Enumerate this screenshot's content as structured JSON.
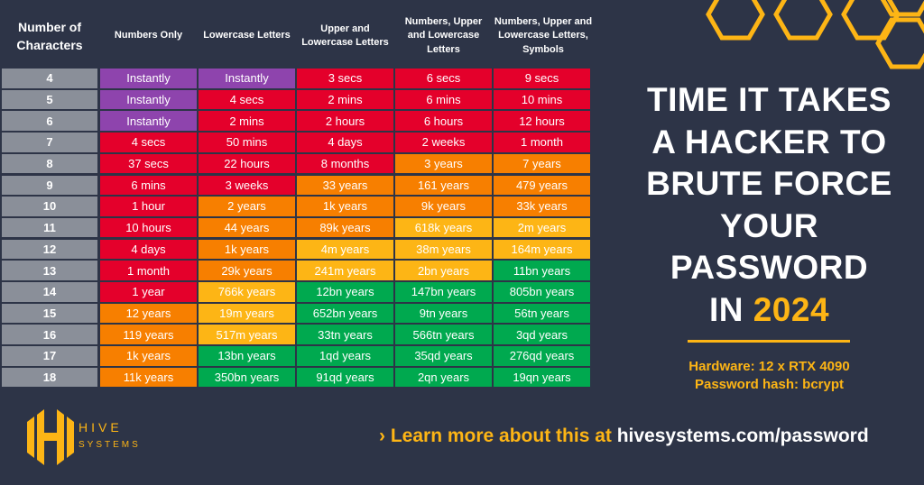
{
  "colors": {
    "background": "#2d3447",
    "row_header": "#8a8f99",
    "P": "#8e44ad",
    "R": "#e4002b",
    "O": "#f77f00",
    "Y": "#fdb515",
    "G": "#00a94f",
    "accent": "#fdb515"
  },
  "chart_data": {
    "type": "table",
    "columns": [
      "Number of Characters",
      "Numbers Only",
      "Lowercase Letters",
      "Upper and Lowercase Letters",
      "Numbers, Upper and Lowercase Letters",
      "Numbers, Upper and Lowercase Letters, Symbols"
    ],
    "rows": [
      {
        "chars": "4",
        "values": [
          "Instantly",
          "Instantly",
          "3 secs",
          "6 secs",
          "9 secs"
        ],
        "colors": [
          "P",
          "P",
          "R",
          "R",
          "R"
        ]
      },
      {
        "chars": "5",
        "values": [
          "Instantly",
          "4 secs",
          "2 mins",
          "6 mins",
          "10 mins"
        ],
        "colors": [
          "P",
          "R",
          "R",
          "R",
          "R"
        ]
      },
      {
        "chars": "6",
        "values": [
          "Instantly",
          "2 mins",
          "2 hours",
          "6 hours",
          "12 hours"
        ],
        "colors": [
          "P",
          "R",
          "R",
          "R",
          "R"
        ]
      },
      {
        "chars": "7",
        "values": [
          "4 secs",
          "50 mins",
          "4 days",
          "2 weeks",
          "1 month"
        ],
        "colors": [
          "R",
          "R",
          "R",
          "R",
          "R"
        ]
      },
      {
        "chars": "8",
        "values": [
          "37 secs",
          "22 hours",
          "8 months",
          "3 years",
          "7 years"
        ],
        "colors": [
          "R",
          "R",
          "R",
          "O",
          "O"
        ]
      },
      {
        "chars": "9",
        "values": [
          "6 mins",
          "3 weeks",
          "33 years",
          "161 years",
          "479 years"
        ],
        "colors": [
          "R",
          "R",
          "O",
          "O",
          "O"
        ]
      },
      {
        "chars": "10",
        "values": [
          "1 hour",
          "2 years",
          "1k years",
          "9k years",
          "33k years"
        ],
        "colors": [
          "R",
          "O",
          "O",
          "O",
          "O"
        ]
      },
      {
        "chars": "11",
        "values": [
          "10 hours",
          "44 years",
          "89k years",
          "618k years",
          "2m years"
        ],
        "colors": [
          "R",
          "O",
          "O",
          "Y",
          "Y"
        ]
      },
      {
        "chars": "12",
        "values": [
          "4 days",
          "1k years",
          "4m years",
          "38m years",
          "164m years"
        ],
        "colors": [
          "R",
          "O",
          "Y",
          "Y",
          "Y"
        ]
      },
      {
        "chars": "13",
        "values": [
          "1 month",
          "29k years",
          "241m years",
          "2bn years",
          "11bn years"
        ],
        "colors": [
          "R",
          "O",
          "Y",
          "Y",
          "G"
        ]
      },
      {
        "chars": "14",
        "values": [
          "1 year",
          "766k years",
          "12bn years",
          "147bn years",
          "805bn years"
        ],
        "colors": [
          "R",
          "Y",
          "G",
          "G",
          "G"
        ]
      },
      {
        "chars": "15",
        "values": [
          "12 years",
          "19m years",
          "652bn years",
          "9tn years",
          "56tn years"
        ],
        "colors": [
          "O",
          "Y",
          "G",
          "G",
          "G"
        ]
      },
      {
        "chars": "16",
        "values": [
          "119 years",
          "517m years",
          "33tn years",
          "566tn years",
          "3qd years"
        ],
        "colors": [
          "O",
          "Y",
          "G",
          "G",
          "G"
        ]
      },
      {
        "chars": "17",
        "values": [
          "1k years",
          "13bn years",
          "1qd years",
          "35qd years",
          "276qd years"
        ],
        "colors": [
          "O",
          "G",
          "G",
          "G",
          "G"
        ]
      },
      {
        "chars": "18",
        "values": [
          "11k years",
          "350bn years",
          "91qd years",
          "2qn years",
          "19qn years"
        ],
        "colors": [
          "O",
          "G",
          "G",
          "G",
          "G"
        ]
      }
    ]
  },
  "headline": {
    "lines": [
      "TIME IT TAKES",
      "A HACKER TO",
      "BRUTE FORCE",
      "YOUR",
      "PASSWORD"
    ],
    "last_prefix": "IN ",
    "year": "2024"
  },
  "specs": {
    "hardware": "Hardware: 12 x RTX 4090",
    "hash": "Password hash: bcrypt"
  },
  "footer": {
    "chevron": "›",
    "lead": "Learn more about this at ",
    "url": "hivesystems.com/password",
    "logo_line1": "HIVE",
    "logo_line2": "SYSTEMS"
  }
}
